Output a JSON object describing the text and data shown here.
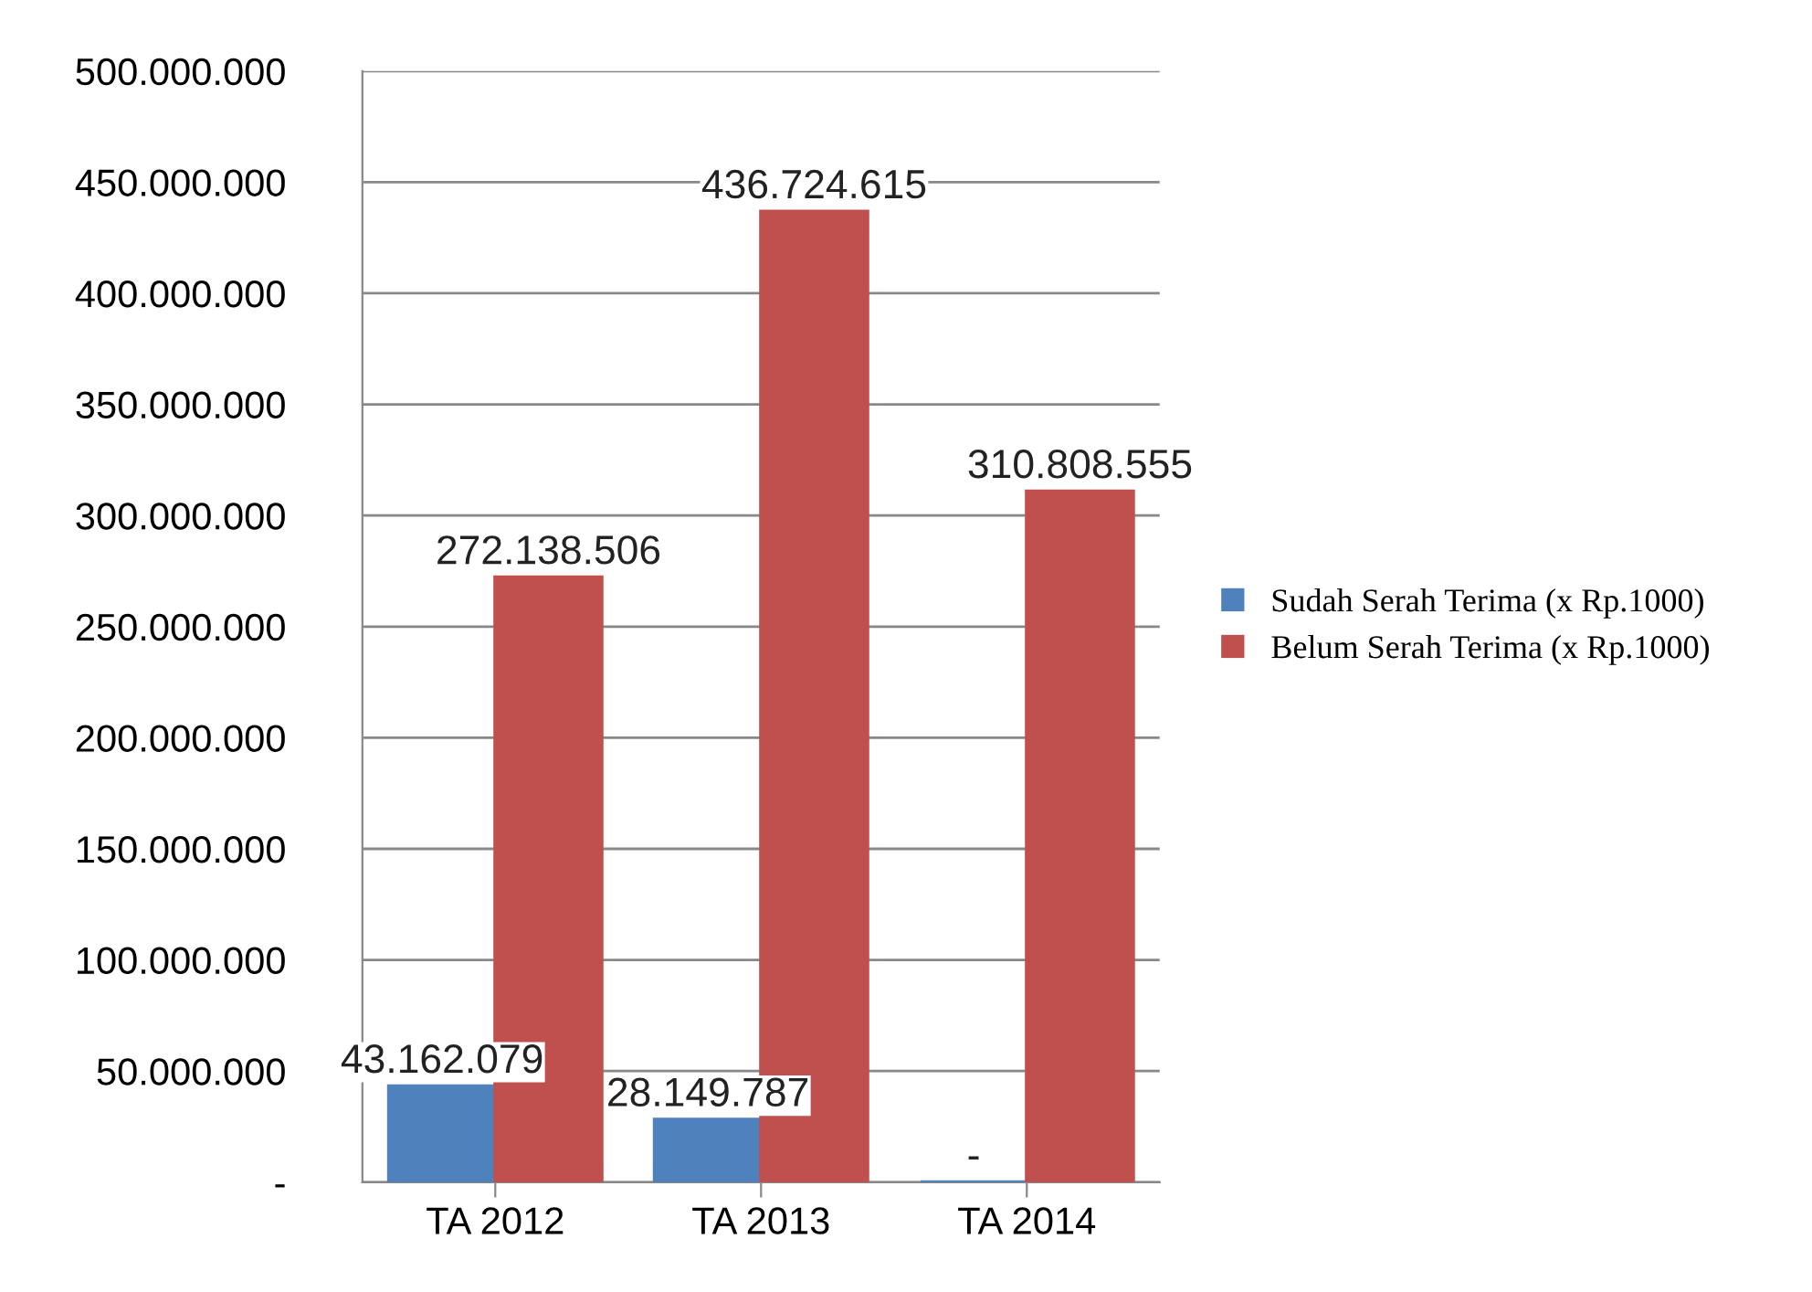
{
  "chart_data": {
    "type": "bar",
    "categories": [
      "TA 2012",
      "TA 2013",
      "TA 2014"
    ],
    "series": [
      {
        "name": "Sudah Serah Terima (x Rp.1000)",
        "color": "#4f81bd",
        "values": [
          43162079,
          28149787,
          0
        ],
        "value_labels": [
          "43.162.079",
          "28.149.787",
          "-"
        ]
      },
      {
        "name": "Belum Serah Terima (x Rp.1000)",
        "color": "#c0504d",
        "values": [
          272138506,
          436724615,
          310808555
        ],
        "value_labels": [
          "272.138.506",
          "436.724.615",
          "310.808.555"
        ]
      }
    ],
    "ylim": [
      0,
      500000000
    ],
    "yticks": [
      {
        "value": 0,
        "label": "-"
      },
      {
        "value": 50000000,
        "label": "50.000.000"
      },
      {
        "value": 100000000,
        "label": "100.000.000"
      },
      {
        "value": 150000000,
        "label": "150.000.000"
      },
      {
        "value": 200000000,
        "label": "200.000.000"
      },
      {
        "value": 250000000,
        "label": "250.000.000"
      },
      {
        "value": 300000000,
        "label": "300.000.000"
      },
      {
        "value": 350000000,
        "label": "350.000.000"
      },
      {
        "value": 400000000,
        "label": "400.000.000"
      },
      {
        "value": 450000000,
        "label": "450.000.000"
      },
      {
        "value": 500000000,
        "label": "500.000.000"
      }
    ],
    "grid": "y",
    "legend": "right"
  }
}
